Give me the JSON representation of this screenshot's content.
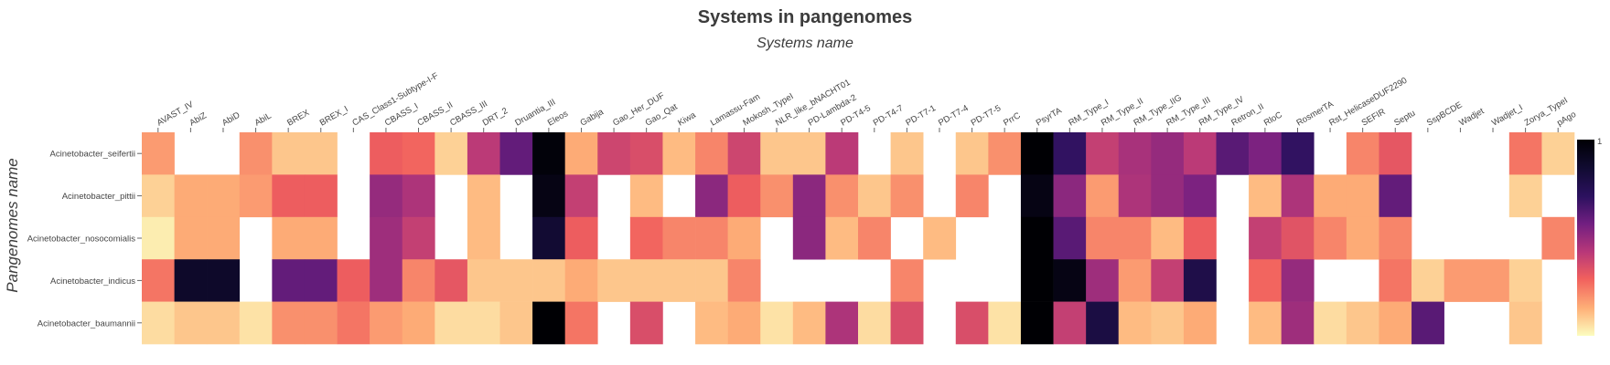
{
  "chart_data": {
    "type": "heatmap",
    "title": "Systems in pangenomes",
    "subtitle": "Systems name",
    "ylabel": "Pangenomes name",
    "colorscale": "magma_r",
    "colorbar": {
      "min": 0,
      "max": 1,
      "tick_label": "1"
    },
    "x": [
      "AVAST_IV",
      "AbiZ",
      "AbiD",
      "AbiL",
      "BREX",
      "BREX_I",
      "CAS_Class1-Subtype-I-F",
      "CBASS_I",
      "CBASS_II",
      "CBASS_III",
      "DRT_2",
      "Druantia_III",
      "Eleos",
      "Gabija",
      "Gao_Her_DUF",
      "Gao_Qat",
      "Kiwa",
      "Lamassu-Fam",
      "Mokosh_TypeI",
      "NLR_like_bNACHT01",
      "PD-Lambda-2",
      "PD-T4-5",
      "PD-T4-7",
      "PD-T7-1",
      "PD-T7-4",
      "PD-T7-5",
      "PrrC",
      "PsyrTA",
      "RM_Type_I",
      "RM_Type_II",
      "RM_Type_IIG",
      "RM_Type_III",
      "RM_Type_IV",
      "Retron_II",
      "RloC",
      "RosmerTA",
      "Rst_HelicaseDUF2290",
      "SEFIR",
      "Septu",
      "SspBCDE",
      "Wadjet",
      "Wadjet_I",
      "Zorya_TypeI",
      "pAgo"
    ],
    "y": [
      "Acinetobacter_seifertii",
      "Acinetobacter_pittii",
      "Acinetobacter_nosocomialis",
      "Acinetobacter_indicus",
      "Acinetobacter_baumannii"
    ],
    "z": [
      [
        0.18,
        null,
        null,
        0.2,
        0.1,
        0.1,
        null,
        0.3,
        0.28,
        0.08,
        0.42,
        0.6,
        0.98,
        0.15,
        0.38,
        0.35,
        0.12,
        0.22,
        0.38,
        0.1,
        0.1,
        0.42,
        null,
        0.1,
        null,
        0.1,
        0.2,
        1.0,
        0.7,
        0.4,
        0.46,
        0.5,
        0.42,
        0.62,
        0.55,
        0.7,
        null,
        0.22,
        0.32,
        null,
        null,
        null,
        0.25,
        0.08
      ],
      [
        0.08,
        0.15,
        0.15,
        0.18,
        0.3,
        0.3,
        null,
        0.5,
        0.45,
        null,
        0.12,
        null,
        0.95,
        0.4,
        null,
        0.12,
        null,
        0.52,
        0.3,
        0.2,
        0.52,
        0.2,
        0.1,
        0.2,
        null,
        0.22,
        null,
        0.95,
        0.52,
        0.18,
        0.45,
        0.5,
        0.55,
        null,
        0.12,
        0.45,
        0.15,
        0.15,
        0.6,
        null,
        null,
        null,
        0.08,
        null
      ],
      [
        0.03,
        0.15,
        0.15,
        null,
        0.15,
        0.15,
        null,
        0.48,
        0.4,
        null,
        0.12,
        null,
        0.85,
        0.3,
        null,
        0.28,
        0.22,
        0.22,
        0.15,
        null,
        0.52,
        0.12,
        0.22,
        null,
        0.12,
        null,
        null,
        1.0,
        0.62,
        0.22,
        0.22,
        0.12,
        0.3,
        null,
        0.4,
        0.33,
        0.22,
        0.15,
        0.22,
        null,
        null,
        null,
        null,
        0.22
      ],
      [
        0.25,
        0.88,
        0.88,
        null,
        0.6,
        0.6,
        0.3,
        0.48,
        0.22,
        0.32,
        0.1,
        0.1,
        0.1,
        0.15,
        0.1,
        0.1,
        0.1,
        0.1,
        0.22,
        null,
        null,
        null,
        null,
        0.22,
        null,
        null,
        null,
        1.0,
        0.95,
        0.48,
        0.18,
        0.4,
        0.78,
        null,
        0.28,
        0.5,
        null,
        null,
        0.25,
        0.08,
        0.18,
        0.18,
        0.08,
        null
      ],
      [
        0.06,
        0.1,
        0.1,
        0.05,
        0.2,
        0.2,
        0.25,
        0.18,
        0.15,
        0.06,
        0.06,
        0.1,
        1.0,
        0.25,
        null,
        0.35,
        null,
        0.12,
        0.15,
        0.05,
        0.12,
        0.45,
        0.06,
        0.35,
        null,
        0.35,
        0.05,
        1.0,
        0.4,
        0.8,
        0.12,
        0.1,
        0.15,
        null,
        0.12,
        0.48,
        0.06,
        0.1,
        0.15,
        0.62,
        null,
        null,
        0.1,
        null
      ]
    ]
  }
}
